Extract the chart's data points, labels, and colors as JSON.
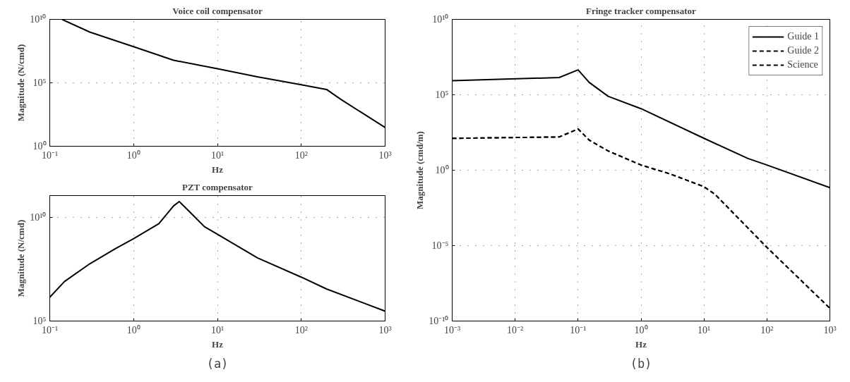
{
  "chart_data": [
    {
      "type": "line",
      "title": "Voice coil compensator",
      "xlabel": "Hz",
      "ylabel": "Magnitude (N/cmd)",
      "log": "xy",
      "grid": true,
      "line_style": "solid",
      "marker": "none",
      "xlim": [
        0.1,
        1000
      ],
      "ylim": [
        1,
        10000000000.0
      ],
      "xticks": [
        {
          "value": 0.1,
          "label": "10⁻¹"
        },
        {
          "value": 1,
          "label": "10⁰"
        },
        {
          "value": 10,
          "label": "10¹"
        },
        {
          "value": 100,
          "label": "10²"
        },
        {
          "value": 1000,
          "label": "10³"
        }
      ],
      "yticks": [
        {
          "value": 1,
          "label": "10⁰"
        },
        {
          "value": 100000,
          "label": "10⁵"
        },
        {
          "value": 10000000000.0,
          "label": "10¹⁰"
        }
      ],
      "series": [
        {
          "color": "#000000",
          "x": [
            0.14,
            0.3,
            1,
            3,
            10,
            30,
            100,
            200,
            300,
            500,
            1000
          ],
          "values": [
            10000000000.0,
            1000000000.0,
            70000000.0,
            6000000.0,
            1300000.0,
            300000.0,
            70000.0,
            30000.0,
            4700,
            550,
            30
          ]
        }
      ]
    },
    {
      "type": "line",
      "title": "PZT compensator",
      "xlabel": "Hz",
      "ylabel": "Magnitude (N/cmd)",
      "log": "xy",
      "grid": true,
      "line_style": "solid",
      "marker": "none",
      "xlim": [
        0.1,
        1000
      ],
      "ylim": [
        100000.0,
        110000000000.0
      ],
      "xticks": [
        {
          "value": 0.1,
          "label": "10⁻¹"
        },
        {
          "value": 1,
          "label": "10⁰"
        },
        {
          "value": 10,
          "label": "10¹"
        },
        {
          "value": 100,
          "label": "10²"
        },
        {
          "value": 1000,
          "label": "10³"
        }
      ],
      "yticks": [
        {
          "value": 100000,
          "label": "10⁵"
        },
        {
          "value": 10000000000.0,
          "label": "10¹⁰"
        }
      ],
      "annotations": [
        "(a)"
      ],
      "series": [
        {
          "color": "#000000",
          "x": [
            0.1,
            0.15,
            0.3,
            0.6,
            1,
            2,
            3,
            3.5,
            4.5,
            7,
            10,
            30,
            100,
            200,
            1000
          ],
          "values": [
            1400000.0,
            8000000.0,
            57000000.0,
            300000000.0,
            930000000.0,
            4900000000.0,
            35000000000.0,
            57000000000.0,
            21000000000.0,
            3500000000.0,
            1500000000.0,
            110000000.0,
            13000000.0,
            3500000.0,
            300000.0
          ]
        }
      ]
    },
    {
      "type": "line",
      "title": "Fringe tracker compensator",
      "xlabel": "Hz",
      "ylabel": "Magnitude (cmd/m)",
      "log": "xy",
      "grid": true,
      "legend": "top right",
      "marker": "none",
      "xlim": [
        0.001,
        1000
      ],
      "ylim": [
        1e-10,
        10000000000.0
      ],
      "xticks": [
        {
          "value": 0.001,
          "label": "10⁻³"
        },
        {
          "value": 0.01,
          "label": "10⁻²"
        },
        {
          "value": 0.1,
          "label": "10⁻¹"
        },
        {
          "value": 1,
          "label": "10⁰"
        },
        {
          "value": 10,
          "label": "10¹"
        },
        {
          "value": 100,
          "label": "10²"
        },
        {
          "value": 1000,
          "label": "10³"
        }
      ],
      "yticks": [
        {
          "value": 1e-10,
          "label": "10⁻¹⁰"
        },
        {
          "value": 1e-05,
          "label": "10⁻⁵"
        },
        {
          "value": 1,
          "label": "10⁰"
        },
        {
          "value": 100000,
          "label": "10⁵"
        },
        {
          "value": 10000000000.0,
          "label": "10¹⁰"
        }
      ],
      "annotations": [
        "(b)"
      ],
      "series": [
        {
          "name": "Guide 1",
          "color": "#000000",
          "line_style": "solid",
          "x": [
            0.001,
            0.05,
            0.1,
            0.15,
            0.3,
            1,
            10,
            50,
            100,
            1000
          ],
          "values": [
            850000.0,
            1400000.0,
            4500000.0,
            670000.0,
            80000.0,
            12000.0,
            130,
            6,
            2.2,
            0.07
          ]
        },
        {
          "name": "Guide 2",
          "color": "#000000",
          "line_style": "dashed",
          "x": [
            0.001,
            0.05,
            0.1,
            0.15,
            0.3,
            1,
            3,
            10,
            15,
            100,
            1000
          ],
          "values": [
            130,
            160,
            540,
            100,
            19,
            2.2,
            0.54,
            0.08,
            0.025,
            7.6e-06,
            7e-10
          ]
        },
        {
          "name": "Science",
          "color": "#000000",
          "line_style": "dashed",
          "x": [
            0.001,
            0.05,
            0.1,
            0.15,
            0.3,
            1,
            3,
            10,
            15,
            100,
            1000
          ],
          "values": [
            130,
            160,
            540,
            100,
            19,
            2.2,
            0.54,
            0.08,
            0.025,
            7.6e-06,
            7e-10
          ]
        }
      ]
    }
  ]
}
